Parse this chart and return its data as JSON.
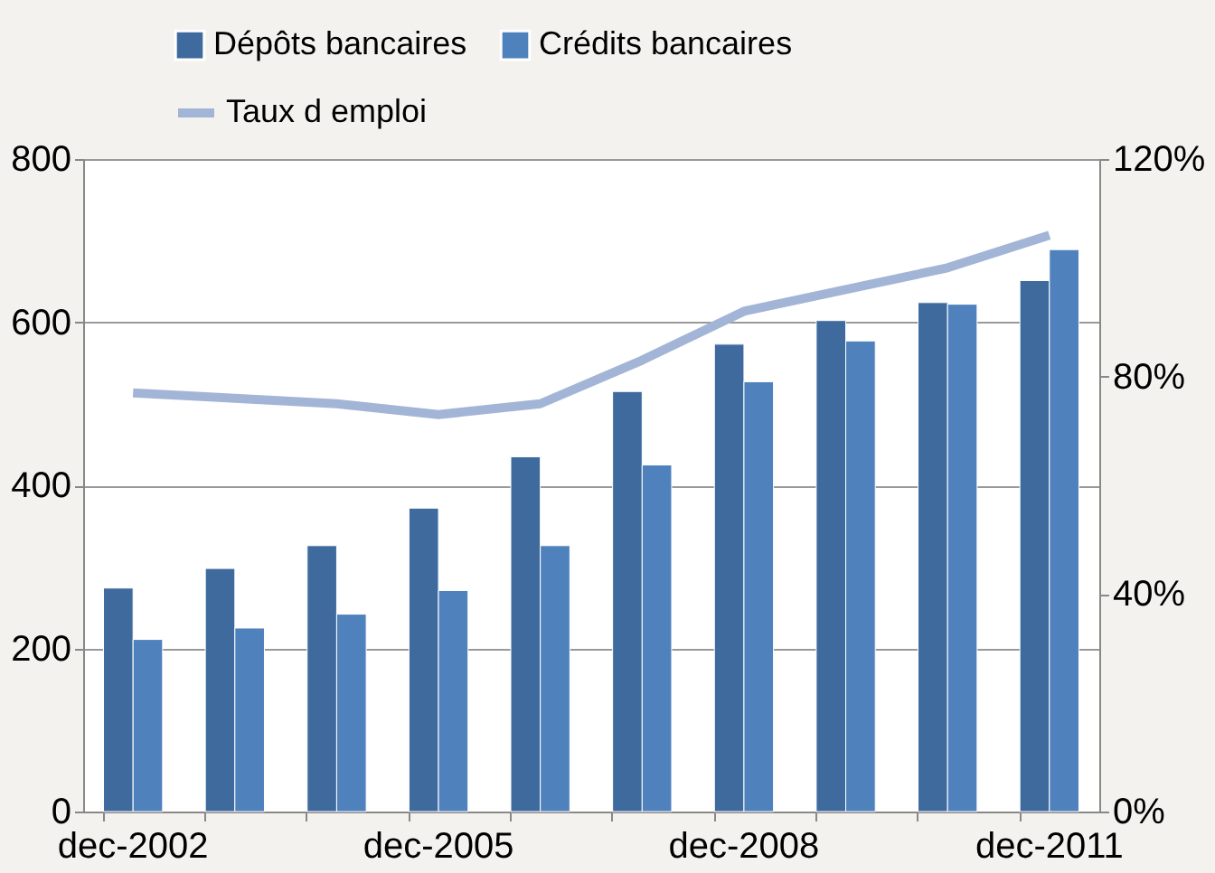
{
  "chart_data": {
    "type": "bar",
    "categories": [
      "dec-2002",
      null,
      null,
      "dec-2005",
      null,
      null,
      "dec-2008",
      null,
      null,
      "dec-2011"
    ],
    "series": [
      {
        "name": "Dépôts  bancaires",
        "color": "#3f6a9e",
        "values": [
          274,
          298,
          326,
          372,
          435,
          515,
          573,
          602,
          624,
          651
        ]
      },
      {
        "name": "Crédits bancaires",
        "color": "#4f81bd",
        "values": [
          211,
          225,
          242,
          271,
          326,
          425,
          527,
          577,
          622,
          689
        ]
      },
      {
        "name": "Taux d emploi",
        "type": "line",
        "axis": "y2",
        "color": "#a3b5d6",
        "values": [
          77,
          76,
          75,
          73,
          75,
          83,
          92,
          96,
          100,
          106
        ]
      }
    ],
    "ylim": [
      0,
      800
    ],
    "yticks": [
      0,
      200,
      400,
      600,
      800
    ],
    "y2lim": [
      0,
      120
    ],
    "y2ticks": [
      {
        "value": 0,
        "label": "0%"
      },
      {
        "value": 40,
        "label": "40%"
      },
      {
        "value": 80,
        "label": "80%"
      },
      {
        "value": 120,
        "label": "120%"
      }
    ],
    "grid": "y",
    "legend": "top",
    "marker": "none",
    "line_style": "solid"
  }
}
